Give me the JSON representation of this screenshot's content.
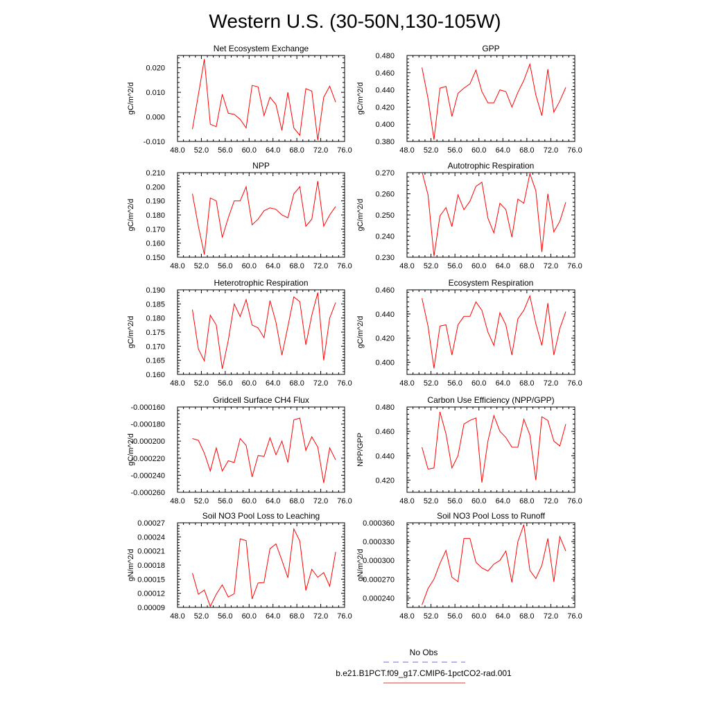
{
  "figure": {
    "title": "Western U.S. (30-50N,130-105W)"
  },
  "legend": {
    "entries": [
      {
        "label": "No Obs",
        "color": "#6b6bdf",
        "dash": true
      },
      {
        "label": "b.e21.B1PCT.f09_g17.CMIP6-1pctCO2-rad.001",
        "color": "#e03a3a",
        "dash": false
      }
    ]
  },
  "colors": {
    "series": "#ff0000",
    "frame": "#000000"
  },
  "chart_data": [
    {
      "type": "line",
      "title": "Net Ecosystem Exchange",
      "ylabel": "gC/m^2/d",
      "xlim": [
        48,
        76
      ],
      "xticks": [
        "48.0",
        "52.0",
        "56.0",
        "60.0",
        "64.0",
        "68.0",
        "72.0",
        "76.0"
      ],
      "xtick_values": [
        48,
        52,
        56,
        60,
        64,
        68,
        72,
        76
      ],
      "ylim": [
        -0.01,
        0.025
      ],
      "yticks": [
        "-0.010",
        "0.000",
        "0.010",
        "0.020"
      ],
      "ytick_values": [
        -0.01,
        0.0,
        0.01,
        0.02
      ],
      "x": [
        50.5,
        51.5,
        52.5,
        53.5,
        54.5,
        55.5,
        56.5,
        57.5,
        58.5,
        59.5,
        60.5,
        61.5,
        62.5,
        63.5,
        64.5,
        65.5,
        66.5,
        67.5,
        68.5,
        69.5,
        70.5,
        71.5,
        72.5,
        73.5,
        74.5
      ],
      "series": [
        {
          "values": [
            -0.005,
            0.009,
            0.0235,
            -0.003,
            -0.004,
            0.0092,
            0.0015,
            0.001,
            -0.001,
            -0.0045,
            0.0128,
            0.0122,
            0.0005,
            0.008,
            0.005,
            -0.0055,
            0.01,
            -0.0045,
            -0.0075,
            0.0115,
            0.0105,
            -0.0095,
            0.008,
            0.0125,
            0.006
          ]
        }
      ]
    },
    {
      "type": "line",
      "title": "GPP",
      "ylabel": "gC/m^2/d",
      "xlim": [
        48,
        76
      ],
      "xticks": [
        "48.0",
        "52.0",
        "56.0",
        "60.0",
        "64.0",
        "68.0",
        "72.0",
        "76.0"
      ],
      "xtick_values": [
        48,
        52,
        56,
        60,
        64,
        68,
        72,
        76
      ],
      "ylim": [
        0.38,
        0.48
      ],
      "yticks": [
        "0.380",
        "0.400",
        "0.420",
        "0.440",
        "0.460",
        "0.480"
      ],
      "ytick_values": [
        0.38,
        0.4,
        0.42,
        0.44,
        0.46,
        0.48
      ],
      "x": [
        50.5,
        51.5,
        52.5,
        53.5,
        54.5,
        55.5,
        56.5,
        57.5,
        58.5,
        59.5,
        60.5,
        61.5,
        62.5,
        63.5,
        64.5,
        65.5,
        66.5,
        67.5,
        68.5,
        69.5,
        70.5,
        71.5,
        72.5,
        73.5,
        74.5
      ],
      "series": [
        {
          "values": [
            0.466,
            0.43,
            0.382,
            0.442,
            0.444,
            0.409,
            0.436,
            0.442,
            0.447,
            0.463,
            0.438,
            0.425,
            0.425,
            0.44,
            0.438,
            0.42,
            0.437,
            0.451,
            0.47,
            0.434,
            0.41,
            0.464,
            0.414,
            0.427,
            0.443
          ]
        }
      ]
    },
    {
      "type": "line",
      "title": "NPP",
      "ylabel": "gC/m^2/d",
      "xlim": [
        48,
        76
      ],
      "xticks": [
        "48.0",
        "52.0",
        "56.0",
        "60.0",
        "64.0",
        "68.0",
        "72.0",
        "76.0"
      ],
      "xtick_values": [
        48,
        52,
        56,
        60,
        64,
        68,
        72,
        76
      ],
      "ylim": [
        0.15,
        0.21
      ],
      "yticks": [
        "0.150",
        "0.160",
        "0.170",
        "0.180",
        "0.190",
        "0.200",
        "0.210"
      ],
      "ytick_values": [
        0.15,
        0.16,
        0.17,
        0.18,
        0.19,
        0.2,
        0.21
      ],
      "x": [
        50.5,
        51.5,
        52.5,
        53.5,
        54.5,
        55.5,
        56.5,
        57.5,
        58.5,
        59.5,
        60.5,
        61.5,
        62.5,
        63.5,
        64.5,
        65.5,
        66.5,
        67.5,
        68.5,
        69.5,
        70.5,
        71.5,
        72.5,
        73.5,
        74.5
      ],
      "series": [
        {
          "values": [
            0.195,
            0.172,
            0.152,
            0.192,
            0.19,
            0.164,
            0.178,
            0.19,
            0.19,
            0.2,
            0.173,
            0.177,
            0.183,
            0.185,
            0.184,
            0.18,
            0.178,
            0.195,
            0.2,
            0.172,
            0.177,
            0.204,
            0.172,
            0.18,
            0.186
          ]
        }
      ]
    },
    {
      "type": "line",
      "title": "Autotrophic Respiration",
      "ylabel": "gC/m^2/d",
      "xlim": [
        48,
        76
      ],
      "xticks": [
        "48.0",
        "52.0",
        "56.0",
        "60.0",
        "64.0",
        "68.0",
        "72.0",
        "76.0"
      ],
      "xtick_values": [
        48,
        52,
        56,
        60,
        64,
        68,
        72,
        76
      ],
      "ylim": [
        0.23,
        0.27
      ],
      "yticks": [
        "0.230",
        "0.240",
        "0.250",
        "0.260",
        "0.270"
      ],
      "ytick_values": [
        0.23,
        0.24,
        0.25,
        0.26,
        0.27
      ],
      "x": [
        50.5,
        51.5,
        52.5,
        53.5,
        54.5,
        55.5,
        56.5,
        57.5,
        58.5,
        59.5,
        60.5,
        61.5,
        62.5,
        63.5,
        64.5,
        65.5,
        66.5,
        67.5,
        68.5,
        69.5,
        70.5,
        71.5,
        72.5,
        73.5,
        74.5
      ],
      "series": [
        {
          "values": [
            0.2705,
            0.2595,
            0.2305,
            0.2495,
            0.2535,
            0.2445,
            0.2595,
            0.2525,
            0.2565,
            0.2635,
            0.2655,
            0.2485,
            0.2415,
            0.2555,
            0.2525,
            0.2395,
            0.2575,
            0.2555,
            0.2695,
            0.2615,
            0.2325,
            0.26,
            0.242,
            0.247,
            0.256
          ]
        }
      ]
    },
    {
      "type": "line",
      "title": "Heterotrophic Respiration",
      "ylabel": "gC/m^2/d",
      "xlim": [
        48,
        76
      ],
      "xticks": [
        "48.0",
        "52.0",
        "56.0",
        "60.0",
        "64.0",
        "68.0",
        "72.0",
        "76.0"
      ],
      "xtick_values": [
        48,
        52,
        56,
        60,
        64,
        68,
        72,
        76
      ],
      "ylim": [
        0.16,
        0.19
      ],
      "yticks": [
        "0.160",
        "0.165",
        "0.170",
        "0.175",
        "0.180",
        "0.185",
        "0.190"
      ],
      "ytick_values": [
        0.16,
        0.165,
        0.17,
        0.175,
        0.18,
        0.185,
        0.19
      ],
      "x": [
        50.5,
        51.5,
        52.5,
        53.5,
        54.5,
        55.5,
        56.5,
        57.5,
        58.5,
        59.5,
        60.5,
        61.5,
        62.5,
        63.5,
        64.5,
        65.5,
        66.5,
        67.5,
        68.5,
        69.5,
        70.5,
        71.5,
        72.5,
        73.5,
        74.5
      ],
      "series": [
        {
          "values": [
            0.183,
            0.169,
            0.1648,
            0.181,
            0.1775,
            0.162,
            0.172,
            0.185,
            0.1805,
            0.1865,
            0.1775,
            0.1765,
            0.173,
            0.1862,
            0.1785,
            0.1668,
            0.177,
            0.1875,
            0.1858,
            0.1705,
            0.181,
            0.189,
            0.165,
            0.18,
            0.1855
          ]
        }
      ]
    },
    {
      "type": "line",
      "title": "Ecosystem Respiration",
      "ylabel": "gC/m^2/d",
      "xlim": [
        48,
        76
      ],
      "xticks": [
        "48.0",
        "52.0",
        "56.0",
        "60.0",
        "64.0",
        "68.0",
        "72.0",
        "76.0"
      ],
      "xtick_values": [
        48,
        52,
        56,
        60,
        64,
        68,
        72,
        76
      ],
      "ylim": [
        0.39,
        0.46
      ],
      "yticks": [
        "0.400",
        "0.420",
        "0.440",
        "0.460"
      ],
      "ytick_values": [
        0.4,
        0.42,
        0.44,
        0.46
      ],
      "x": [
        50.5,
        51.5,
        52.5,
        53.5,
        54.5,
        55.5,
        56.5,
        57.5,
        58.5,
        59.5,
        60.5,
        61.5,
        62.5,
        63.5,
        64.5,
        65.5,
        66.5,
        67.5,
        68.5,
        69.5,
        70.5,
        71.5,
        72.5,
        73.5,
        74.5
      ],
      "series": [
        {
          "values": [
            0.453,
            0.43,
            0.395,
            0.43,
            0.431,
            0.406,
            0.431,
            0.438,
            0.438,
            0.45,
            0.443,
            0.425,
            0.414,
            0.441,
            0.431,
            0.406,
            0.436,
            0.443,
            0.455,
            0.432,
            0.414,
            0.449,
            0.406,
            0.428,
            0.442
          ]
        }
      ]
    },
    {
      "type": "line",
      "title": "Gridcell Surface CH4 Flux",
      "ylabel": "gC/m^2/d",
      "xlim": [
        48,
        76
      ],
      "xticks": [
        "48.0",
        "52.0",
        "56.0",
        "60.0",
        "64.0",
        "68.0",
        "72.0",
        "76.0"
      ],
      "xtick_values": [
        48,
        52,
        56,
        60,
        64,
        68,
        72,
        76
      ],
      "ylim": [
        -0.00026,
        -0.00016
      ],
      "yticks": [
        "-0.000260",
        "-0.000240",
        "-0.000220",
        "-0.000200",
        "-0.000180",
        "-0.000160"
      ],
      "ytick_values": [
        -0.00026,
        -0.00024,
        -0.00022,
        -0.0002,
        -0.00018,
        -0.00016
      ],
      "x": [
        50.5,
        51.5,
        52.5,
        53.5,
        54.5,
        55.5,
        56.5,
        57.5,
        58.5,
        59.5,
        60.5,
        61.5,
        62.5,
        63.5,
        64.5,
        65.5,
        66.5,
        67.5,
        68.5,
        69.5,
        70.5,
        71.5,
        72.5,
        73.5,
        74.5
      ],
      "series": [
        {
          "values": [
            -0.000197,
            -0.000199,
            -0.000214,
            -0.000235,
            -0.000208,
            -0.000235,
            -0.000223,
            -0.000225,
            -0.000197,
            -0.000205,
            -0.000242,
            -0.000217,
            -0.000218,
            -0.000196,
            -0.000216,
            -0.0002,
            -0.000225,
            -0.000175,
            -0.000173,
            -0.000211,
            -0.000195,
            -0.000207,
            -0.000249,
            -0.000208,
            -0.000222
          ]
        }
      ]
    },
    {
      "type": "line",
      "title": "Carbon Use Efficiency (NPP/GPP)",
      "ylabel": "NPP/GPP",
      "xlim": [
        48,
        76
      ],
      "xticks": [
        "48.0",
        "52.0",
        "56.0",
        "60.0",
        "64.0",
        "68.0",
        "72.0",
        "76.0"
      ],
      "xtick_values": [
        48,
        52,
        56,
        60,
        64,
        68,
        72,
        76
      ],
      "ylim": [
        0.41,
        0.48
      ],
      "yticks": [
        "0.420",
        "0.440",
        "0.460",
        "0.480"
      ],
      "ytick_values": [
        0.42,
        0.44,
        0.46,
        0.48
      ],
      "x": [
        50.5,
        51.5,
        52.5,
        53.5,
        54.5,
        55.5,
        56.5,
        57.5,
        58.5,
        59.5,
        60.5,
        61.5,
        62.5,
        63.5,
        64.5,
        65.5,
        66.5,
        67.5,
        68.5,
        69.5,
        70.5,
        71.5,
        72.5,
        73.5,
        74.5
      ],
      "series": [
        {
          "values": [
            0.447,
            0.429,
            0.43,
            0.476,
            0.458,
            0.43,
            0.44,
            0.466,
            0.469,
            0.471,
            0.418,
            0.452,
            0.473,
            0.46,
            0.455,
            0.447,
            0.447,
            0.47,
            0.457,
            0.42,
            0.472,
            0.469,
            0.452,
            0.448,
            0.466
          ]
        }
      ]
    },
    {
      "type": "line",
      "title": "Soil NO3 Pool Loss to Leaching",
      "ylabel": "gN/m^2/d",
      "xlim": [
        48,
        76
      ],
      "xticks": [
        "48.0",
        "52.0",
        "56.0",
        "60.0",
        "64.0",
        "68.0",
        "72.0",
        "76.0"
      ],
      "xtick_values": [
        48,
        52,
        56,
        60,
        64,
        68,
        72,
        76
      ],
      "ylim": [
        9e-05,
        0.00027
      ],
      "yticks": [
        "0.00009",
        "0.00012",
        "0.00015",
        "0.00018",
        "0.00021",
        "0.00024",
        "0.00027"
      ],
      "ytick_values": [
        9e-05,
        0.00012,
        0.00015,
        0.00018,
        0.00021,
        0.00024,
        0.00027
      ],
      "x": [
        50.5,
        51.5,
        52.5,
        53.5,
        54.5,
        55.5,
        56.5,
        57.5,
        58.5,
        59.5,
        60.5,
        61.5,
        62.5,
        63.5,
        64.5,
        65.5,
        66.5,
        67.5,
        68.5,
        69.5,
        70.5,
        71.5,
        72.5,
        73.5,
        74.5
      ],
      "series": [
        {
          "values": [
            0.000163,
            0.000118,
            0.000127,
            9.2e-05,
            0.000118,
            0.000138,
            0.000112,
            0.000119,
            0.000236,
            0.000232,
            0.000108,
            0.000142,
            0.000143,
            0.000215,
            0.000225,
            0.00019,
            0.000153,
            0.000257,
            0.000231,
            0.000126,
            0.000171,
            0.000154,
            0.000164,
            0.000135,
            0.000208
          ]
        }
      ]
    },
    {
      "type": "line",
      "title": "Soil NO3 Pool Loss to Runoff",
      "ylabel": "gN/m^2/d",
      "xlim": [
        48,
        76
      ],
      "xticks": [
        "48.0",
        "52.0",
        "56.0",
        "60.0",
        "64.0",
        "68.0",
        "72.0",
        "76.0"
      ],
      "xtick_values": [
        48,
        52,
        56,
        60,
        64,
        68,
        72,
        76
      ],
      "ylim": [
        0.000225,
        0.00036
      ],
      "yticks": [
        "0.000240",
        "0.000270",
        "0.000300",
        "0.000330",
        "0.000360"
      ],
      "ytick_values": [
        0.00024,
        0.00027,
        0.0003,
        0.00033,
        0.00036
      ],
      "x": [
        50.5,
        51.5,
        52.5,
        53.5,
        54.5,
        55.5,
        56.5,
        57.5,
        58.5,
        59.5,
        60.5,
        61.5,
        62.5,
        63.5,
        64.5,
        65.5,
        66.5,
        67.5,
        68.5,
        69.5,
        70.5,
        71.5,
        72.5,
        73.5,
        74.5
      ],
      "series": [
        {
          "values": [
            0.000229,
            0.000255,
            0.00027,
            0.000295,
            0.000316,
            0.000273,
            0.000266,
            0.000335,
            0.000335,
            0.000297,
            0.000288,
            0.000283,
            0.000294,
            0.0003,
            0.000315,
            0.000265,
            0.00033,
            0.000357,
            0.000284,
            0.000271,
            0.000292,
            0.000335,
            0.000266,
            0.000338,
            0.000315
          ]
        }
      ]
    }
  ]
}
